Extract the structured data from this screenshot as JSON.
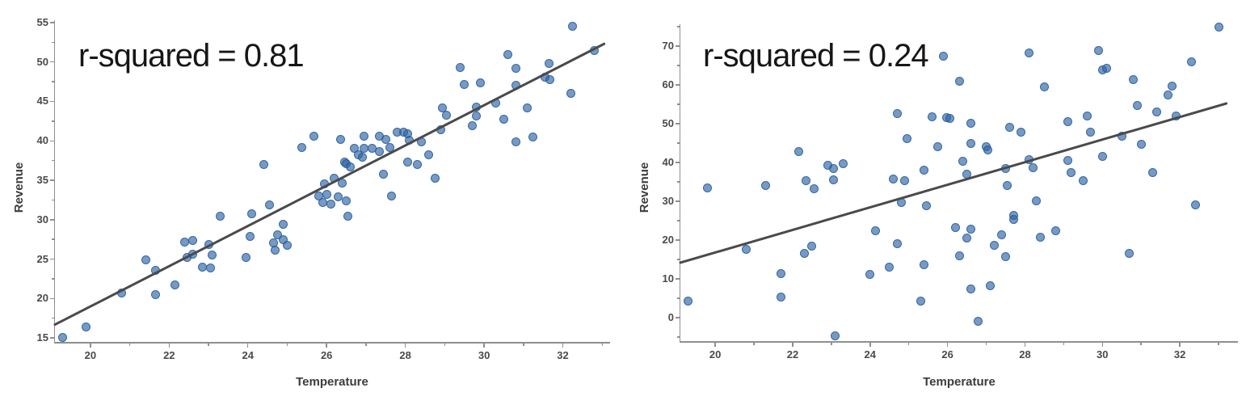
{
  "chart_data": [
    {
      "type": "scatter",
      "annotation": "r-squared = 0.81",
      "xlabel": "Temperature",
      "ylabel": "Revenue",
      "xlim": [
        19.1,
        33.2
      ],
      "ylim": [
        14.5,
        55.3
      ],
      "x_ticks": [
        20,
        22,
        24,
        26,
        28,
        30,
        32
      ],
      "x_minor_ticks": [
        21,
        23,
        25,
        27,
        29,
        31,
        33
      ],
      "y_ticks": [
        15,
        20,
        25,
        30,
        35,
        40,
        45,
        50,
        55
      ],
      "y_minor_ticks": [
        17.5,
        22.5,
        27.5,
        32.5,
        37.5,
        42.5,
        47.5,
        52.5
      ],
      "grid": false,
      "legend": false,
      "trendline": {
        "x1": 19.1,
        "y1": 16.7,
        "x2": 33.05,
        "y2": 52.3
      },
      "points": [
        [
          19.3,
          15.1
        ],
        [
          19.9,
          16.4
        ],
        [
          20.8,
          20.7
        ],
        [
          21.4,
          24.9
        ],
        [
          21.65,
          23.6
        ],
        [
          21.65,
          20.5
        ],
        [
          22.15,
          21.7
        ],
        [
          22.4,
          27.2
        ],
        [
          22.6,
          27.4
        ],
        [
          22.45,
          25.2
        ],
        [
          22.6,
          25.6
        ],
        [
          22.85,
          24.0
        ],
        [
          23.0,
          26.9
        ],
        [
          23.1,
          25.5
        ],
        [
          23.05,
          23.9
        ],
        [
          23.3,
          30.4
        ],
        [
          23.95,
          25.2
        ],
        [
          24.05,
          27.9
        ],
        [
          24.1,
          30.7
        ],
        [
          24.4,
          37.0
        ],
        [
          24.55,
          31.9
        ],
        [
          24.65,
          27.1
        ],
        [
          24.7,
          26.1
        ],
        [
          24.75,
          28.1
        ],
        [
          24.9,
          29.4
        ],
        [
          24.9,
          27.5
        ],
        [
          25.0,
          26.7
        ],
        [
          25.37,
          39.2
        ],
        [
          25.68,
          40.6
        ],
        [
          25.8,
          33.0
        ],
        [
          25.9,
          32.2
        ],
        [
          26.1,
          32.0
        ],
        [
          25.95,
          34.5
        ],
        [
          26.2,
          35.3
        ],
        [
          26.4,
          34.6
        ],
        [
          26.0,
          33.2
        ],
        [
          26.3,
          32.9
        ],
        [
          26.5,
          32.4
        ],
        [
          26.55,
          30.4
        ],
        [
          26.35,
          40.2
        ],
        [
          26.45,
          37.3
        ],
        [
          26.5,
          37.1
        ],
        [
          26.6,
          36.7
        ],
        [
          26.7,
          39.1
        ],
        [
          26.95,
          39.1
        ],
        [
          27.15,
          39.1
        ],
        [
          26.8,
          38.2
        ],
        [
          26.9,
          37.9
        ],
        [
          27.35,
          38.6
        ],
        [
          26.95,
          40.6
        ],
        [
          27.35,
          40.6
        ],
        [
          27.5,
          40.2
        ],
        [
          27.45,
          35.8
        ],
        [
          27.65,
          33.0
        ],
        [
          27.6,
          39.2
        ],
        [
          27.8,
          41.1
        ],
        [
          27.95,
          41.1
        ],
        [
          28.05,
          40.9
        ],
        [
          28.1,
          40.1
        ],
        [
          28.4,
          39.9
        ],
        [
          28.05,
          37.3
        ],
        [
          28.3,
          37.0
        ],
        [
          28.6,
          38.2
        ],
        [
          28.75,
          35.3
        ],
        [
          28.9,
          41.4
        ],
        [
          28.95,
          44.2
        ],
        [
          29.05,
          43.3
        ],
        [
          29.4,
          49.3
        ],
        [
          29.5,
          47.2
        ],
        [
          29.9,
          47.4
        ],
        [
          29.8,
          44.3
        ],
        [
          29.8,
          43.2
        ],
        [
          29.7,
          41.9
        ],
        [
          30.3,
          44.8
        ],
        [
          30.5,
          42.7
        ],
        [
          30.6,
          50.9
        ],
        [
          30.8,
          49.2
        ],
        [
          30.8,
          47.0
        ],
        [
          30.8,
          39.9
        ],
        [
          31.1,
          44.2
        ],
        [
          31.25,
          40.5
        ],
        [
          31.55,
          48.1
        ],
        [
          31.67,
          47.8
        ],
        [
          31.66,
          49.8
        ],
        [
          32.2,
          46.0
        ],
        [
          32.25,
          54.5
        ],
        [
          32.8,
          51.5
        ]
      ],
      "colors": {
        "point_fill": "rgba(45,100,165,0.65)",
        "point_edge": "rgba(35,85,150,0.75)",
        "trend": "#4a4a4a",
        "axis": "#8f8f8f",
        "tick_label": "#4a4a4a",
        "axis_title": "#3c3c3c",
        "annotation": "#161616"
      }
    },
    {
      "type": "scatter",
      "annotation": "r-squared = 0.24",
      "xlabel": "Temperature",
      "ylabel": "Revenue",
      "xlim": [
        19.1,
        33.5
      ],
      "ylim": [
        -6,
        75.6
      ],
      "x_ticks": [
        20,
        22,
        24,
        26,
        28,
        30,
        32
      ],
      "x_minor_ticks": [
        21,
        23,
        25,
        27,
        29,
        31,
        33
      ],
      "y_ticks": [
        0,
        10,
        20,
        30,
        40,
        50,
        60,
        70
      ],
      "y_minor_ticks": [
        -5,
        5,
        15,
        25,
        35,
        45,
        55,
        65,
        75
      ],
      "grid": false,
      "legend": false,
      "trendline": {
        "x1": 19.1,
        "y1": 14.2,
        "x2": 33.2,
        "y2": 55.2
      },
      "points": [
        [
          19.3,
          4.4
        ],
        [
          19.8,
          33.5
        ],
        [
          20.8,
          17.7
        ],
        [
          21.3,
          34.1
        ],
        [
          21.7,
          11.4
        ],
        [
          21.7,
          5.4
        ],
        [
          22.15,
          42.9
        ],
        [
          22.35,
          35.4
        ],
        [
          22.3,
          16.5
        ],
        [
          22.55,
          33.2
        ],
        [
          22.5,
          18.4
        ],
        [
          22.9,
          39.3
        ],
        [
          23.05,
          38.4
        ],
        [
          23.3,
          39.7
        ],
        [
          23.05,
          35.5
        ],
        [
          23.1,
          -4.6
        ],
        [
          24.0,
          11.2
        ],
        [
          24.15,
          22.4
        ],
        [
          24.5,
          13.0
        ],
        [
          24.6,
          35.8
        ],
        [
          24.7,
          19.0
        ],
        [
          24.7,
          52.6
        ],
        [
          24.8,
          29.8
        ],
        [
          24.9,
          35.3
        ],
        [
          24.95,
          46.1
        ],
        [
          25.3,
          4.3
        ],
        [
          25.4,
          13.7
        ],
        [
          25.4,
          38.1
        ],
        [
          25.45,
          28.9
        ],
        [
          25.6,
          51.8
        ],
        [
          25.75,
          44.0
        ],
        [
          25.9,
          67.4
        ],
        [
          25.98,
          51.6
        ],
        [
          26.06,
          51.3
        ],
        [
          26.3,
          61.0
        ],
        [
          26.6,
          50.2
        ],
        [
          26.2,
          23.2
        ],
        [
          26.6,
          22.8
        ],
        [
          26.5,
          20.5
        ],
        [
          26.3,
          16.0
        ],
        [
          26.6,
          7.5
        ],
        [
          26.8,
          -0.9
        ],
        [
          27.1,
          8.2
        ],
        [
          27.2,
          18.6
        ],
        [
          27.4,
          21.4
        ],
        [
          27.5,
          15.8
        ],
        [
          27.7,
          26.4
        ],
        [
          27.7,
          25.3
        ],
        [
          27.55,
          34.1
        ],
        [
          27.5,
          38.4
        ],
        [
          26.4,
          40.3
        ],
        [
          26.5,
          37.0
        ],
        [
          26.6,
          45.0
        ],
        [
          27.0,
          44.1
        ],
        [
          27.05,
          43.3
        ],
        [
          27.6,
          49.0
        ],
        [
          27.9,
          47.8
        ],
        [
          28.1,
          40.7
        ],
        [
          28.2,
          38.7
        ],
        [
          28.1,
          68.2
        ],
        [
          28.5,
          59.4
        ],
        [
          28.3,
          30.2
        ],
        [
          28.4,
          20.7
        ],
        [
          28.8,
          22.5
        ],
        [
          29.1,
          50.5
        ],
        [
          29.1,
          40.5
        ],
        [
          29.2,
          37.4
        ],
        [
          29.5,
          35.3
        ],
        [
          29.6,
          52.0
        ],
        [
          29.7,
          47.8
        ],
        [
          29.9,
          68.8
        ],
        [
          30.0,
          63.8
        ],
        [
          30.1,
          64.3
        ],
        [
          30.0,
          41.6
        ],
        [
          30.5,
          46.8
        ],
        [
          30.7,
          16.6
        ],
        [
          30.8,
          61.4
        ],
        [
          30.9,
          54.7
        ],
        [
          31.0,
          44.7
        ],
        [
          31.3,
          37.4
        ],
        [
          31.4,
          53.0
        ],
        [
          31.7,
          57.4
        ],
        [
          31.8,
          59.7
        ],
        [
          31.9,
          52.0
        ],
        [
          32.3,
          65.9
        ],
        [
          32.4,
          29.0
        ],
        [
          33.0,
          74.8
        ]
      ],
      "colors": {
        "point_fill": "rgba(45,100,165,0.65)",
        "point_edge": "rgba(35,85,150,0.75)",
        "trend": "#4a4a4a",
        "axis": "#8f8f8f",
        "tick_label": "#4a4a4a",
        "axis_title": "#3c3c3c",
        "annotation": "#161616"
      }
    }
  ]
}
